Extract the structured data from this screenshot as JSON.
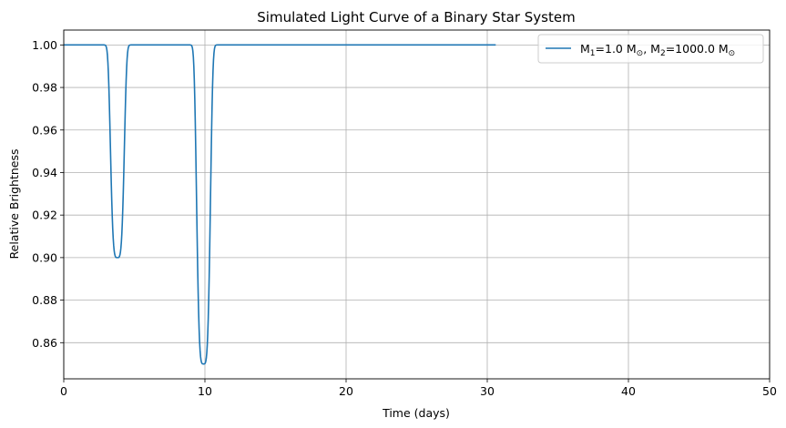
{
  "chart_data": {
    "type": "line",
    "title": "Simulated Light Curve of a Binary Star System",
    "xlabel": "Time (days)",
    "ylabel": "Relative Brightness",
    "xlim": [
      0,
      50
    ],
    "ylim": [
      0.843,
      1.007
    ],
    "xticks": [
      0,
      10,
      20,
      30,
      40,
      50
    ],
    "xtick_labels": [
      "0",
      "10",
      "20",
      "30",
      "40",
      "50"
    ],
    "yticks": [
      0.86,
      0.88,
      0.9,
      0.92,
      0.94,
      0.96,
      0.98,
      1.0
    ],
    "ytick_labels": [
      "0.86",
      "0.88",
      "0.90",
      "0.92",
      "0.94",
      "0.96",
      "0.98",
      "1.00"
    ],
    "grid": true,
    "legend_position": "top-right",
    "series": [
      {
        "name": "M1=1.0 M☉, M2=1000.0 M☉",
        "legend": {
          "m1_label": "M",
          "m1_sub": "1",
          "m1_value": "=1.0 M",
          "m1_unit_sub": "⊙",
          "sep": ", ",
          "m2_label": "M",
          "m2_sub": "2",
          "m2_value": "=1000.0 M",
          "m2_unit_sub": "⊙"
        },
        "color": "#1f77b4",
        "x_range": [
          0,
          30.6
        ],
        "baseline": 1.0,
        "dips": [
          {
            "center": 3.8,
            "depth": 0.1,
            "sigma": 0.45
          },
          {
            "center": 9.9,
            "depth": 0.15,
            "sigma": 0.45
          }
        ]
      }
    ]
  }
}
